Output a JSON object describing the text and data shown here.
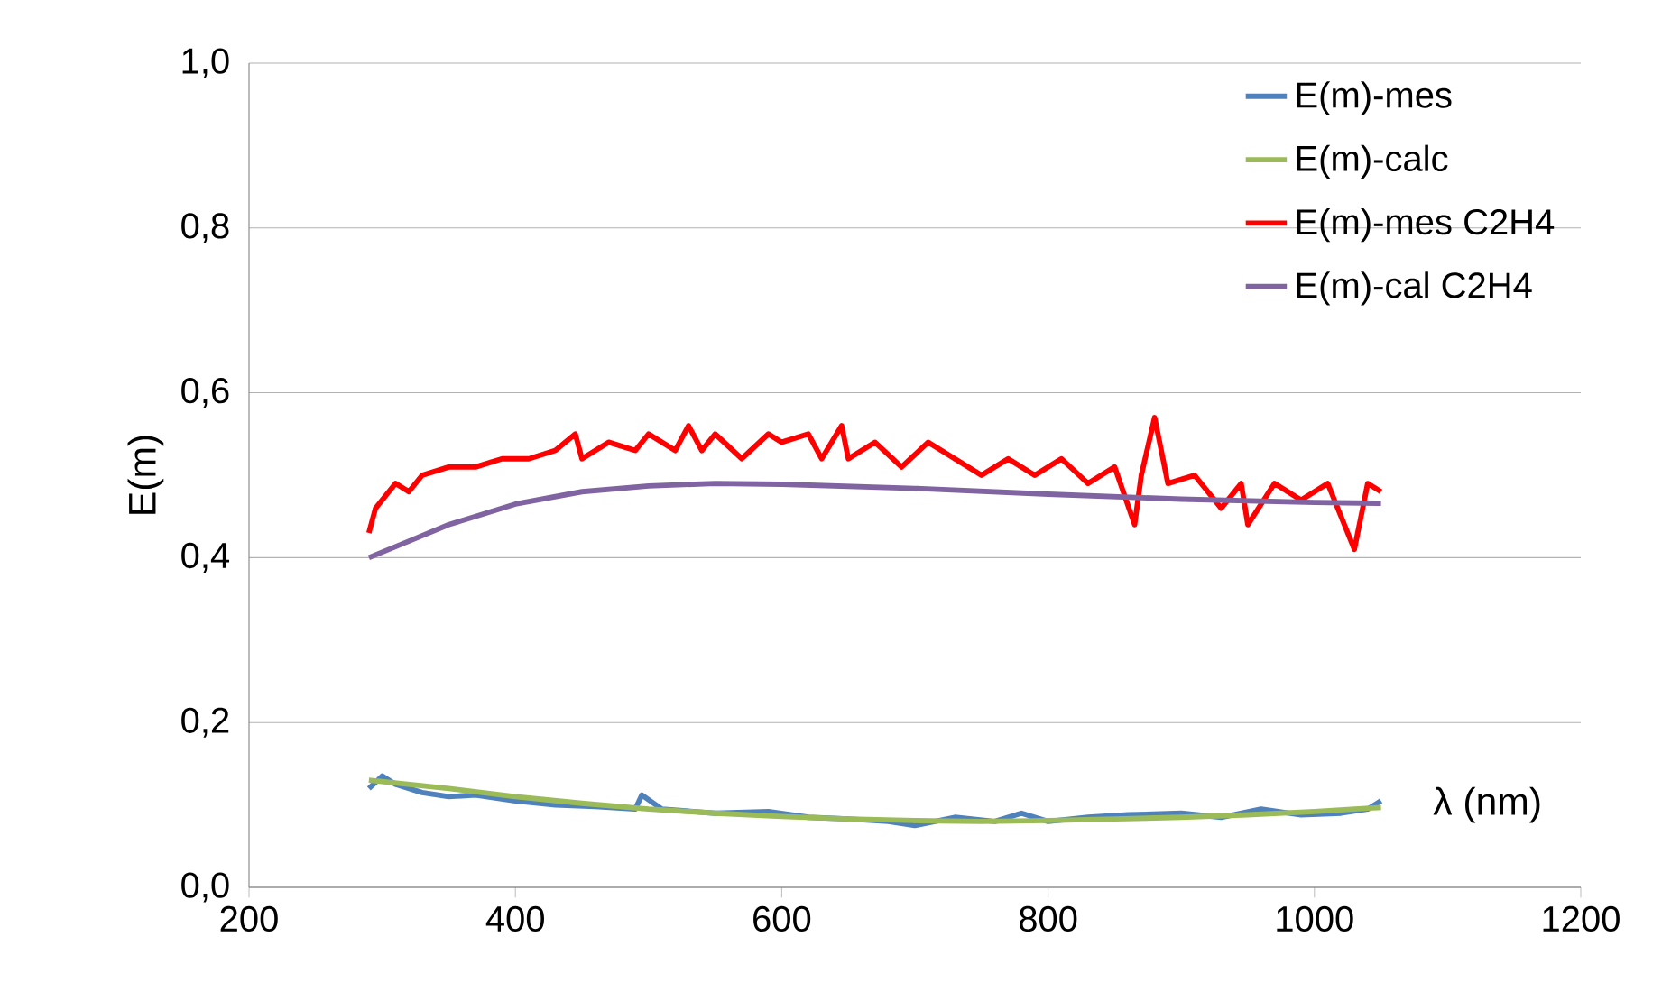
{
  "chart_data": {
    "type": "line",
    "xlabel": "λ (nm)",
    "ylabel": "E(m)",
    "xlim": [
      200,
      1200
    ],
    "xticks": [
      200,
      400,
      600,
      800,
      1000,
      1200
    ],
    "ylim": [
      0,
      1
    ],
    "yticks": [
      {
        "value": 0,
        "label": "0,0"
      },
      {
        "value": 0.2,
        "label": "0,2"
      },
      {
        "value": 0.4,
        "label": "0,4"
      },
      {
        "value": 0.6,
        "label": "0,6"
      },
      {
        "value": 0.8,
        "label": "0,8"
      },
      {
        "value": 1,
        "label": "1,0"
      }
    ],
    "grid": "y",
    "legend": "top right",
    "marker": "none",
    "line_style": "solid",
    "series": [
      {
        "name": "E(m)-mes",
        "color": "#4f81bd",
        "x": [
          290,
          300,
          310,
          330,
          350,
          370,
          400,
          430,
          460,
          490,
          495,
          510,
          550,
          590,
          620,
          650,
          680,
          700,
          730,
          760,
          780,
          800,
          830,
          860,
          900,
          930,
          960,
          990,
          1020,
          1040,
          1050
        ],
        "values": [
          0.12,
          0.135,
          0.125,
          0.115,
          0.11,
          0.112,
          0.105,
          0.1,
          0.098,
          0.095,
          0.112,
          0.095,
          0.09,
          0.092,
          0.085,
          0.083,
          0.08,
          0.075,
          0.085,
          0.08,
          0.09,
          0.08,
          0.085,
          0.088,
          0.09,
          0.085,
          0.095,
          0.088,
          0.09,
          0.095,
          0.105
        ]
      },
      {
        "name": "E(m)-calc",
        "color": "#9bbb59",
        "x": [
          290,
          350,
          400,
          450,
          500,
          550,
          600,
          650,
          700,
          750,
          800,
          850,
          900,
          950,
          1000,
          1050
        ],
        "values": [
          0.13,
          0.12,
          0.11,
          0.102,
          0.095,
          0.09,
          0.086,
          0.083,
          0.081,
          0.08,
          0.081,
          0.083,
          0.085,
          0.088,
          0.092,
          0.097
        ]
      },
      {
        "name": "E(m)-mes C2H4",
        "color": "#ff0000",
        "x": [
          290,
          295,
          300,
          310,
          320,
          330,
          350,
          370,
          390,
          410,
          430,
          445,
          450,
          470,
          490,
          500,
          520,
          530,
          540,
          550,
          570,
          590,
          600,
          620,
          630,
          645,
          650,
          670,
          690,
          710,
          730,
          750,
          770,
          790,
          810,
          830,
          850,
          865,
          870,
          880,
          890,
          910,
          930,
          945,
          950,
          970,
          990,
          1010,
          1030,
          1040,
          1050
        ],
        "values": [
          0.43,
          0.46,
          0.47,
          0.49,
          0.48,
          0.5,
          0.51,
          0.51,
          0.52,
          0.52,
          0.53,
          0.55,
          0.52,
          0.54,
          0.53,
          0.55,
          0.53,
          0.56,
          0.53,
          0.55,
          0.52,
          0.55,
          0.54,
          0.55,
          0.52,
          0.56,
          0.52,
          0.54,
          0.51,
          0.54,
          0.52,
          0.5,
          0.52,
          0.5,
          0.52,
          0.49,
          0.51,
          0.44,
          0.5,
          0.57,
          0.49,
          0.5,
          0.46,
          0.49,
          0.44,
          0.49,
          0.47,
          0.49,
          0.41,
          0.49,
          0.48
        ]
      },
      {
        "name": "E(m)-cal C2H4",
        "color": "#8064a2",
        "x": [
          290,
          320,
          350,
          400,
          450,
          500,
          550,
          600,
          700,
          800,
          900,
          1000,
          1050
        ],
        "values": [
          0.4,
          0.42,
          0.44,
          0.465,
          0.48,
          0.487,
          0.49,
          0.489,
          0.484,
          0.477,
          0.471,
          0.467,
          0.466
        ]
      }
    ]
  }
}
